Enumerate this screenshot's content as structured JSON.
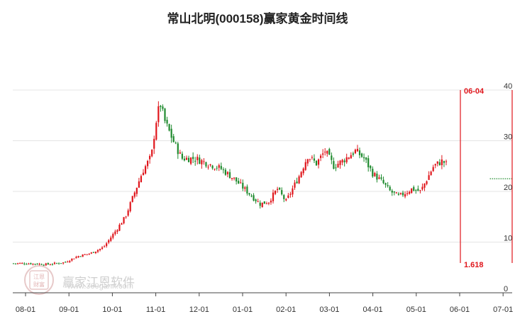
{
  "chart_data": {
    "type": "candlestick",
    "title": "常山北明(000158)赢家黄金时间线",
    "x_tick_labels": [
      "08-01",
      "09-01",
      "10-01",
      "11-01",
      "12-01",
      "01-01",
      "02-01",
      "03-01",
      "04-01",
      "05-01",
      "06-01",
      "07-01"
    ],
    "y_tick_labels": [
      "40",
      "30",
      "20",
      "10",
      "0"
    ],
    "y_ticks": [
      40,
      30,
      20,
      10,
      0
    ],
    "ylim": [
      0,
      42
    ],
    "grid": true,
    "up_color": "#e0161c",
    "down_color": "#1f8a2e",
    "projection_color": "#1f8a2e",
    "marker_color": "#e0161c",
    "price_series": {
      "months": [
        0,
        0.5,
        0.9,
        1.2,
        1.5,
        1.8,
        2.1,
        2.3,
        2.5,
        2.7,
        2.9,
        3.0,
        3.1,
        3.2,
        3.4,
        3.6,
        3.9,
        4.2,
        4.5,
        4.8,
        5.1,
        5.4,
        5.6,
        5.8,
        6.0,
        6.3,
        6.5,
        6.7,
        6.9,
        7.1,
        7.3,
        7.6,
        7.8,
        8.0,
        8.2,
        8.4,
        8.6,
        8.9,
        9.1,
        9.4,
        9.6,
        9.9,
        10.2,
        10.5,
        11.3
      ],
      "close": [
        5.8,
        5.6,
        6.0,
        7.2,
        7.8,
        9.0,
        12.5,
        15.0,
        19.5,
        24.0,
        27.0,
        33.5,
        37.5,
        34.0,
        30.0,
        26.5,
        26.5,
        25.5,
        24.5,
        22.5,
        20.0,
        17.5,
        18.0,
        20.5,
        18.0,
        23.0,
        27.0,
        25.5,
        28.0,
        25.0,
        26.0,
        28.0,
        26.5,
        23.5,
        22.0,
        20.0,
        19.0,
        20.5,
        20.0,
        25.0,
        26.0,
        24.0,
        22.5,
        22.5,
        22.5
      ]
    },
    "projection_start_month": 10.5,
    "annotations": {
      "marker_date": "06-04",
      "marker_value": "1.618"
    }
  },
  "watermark": {
    "text": "赢家江恩软件",
    "url": "www.360gann.com",
    "logo_text": [
      "江恩",
      "财富"
    ]
  }
}
